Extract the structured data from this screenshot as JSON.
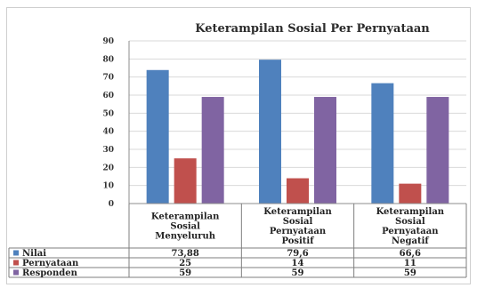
{
  "chart_data": {
    "type": "bar",
    "title": "Keterampilan Sosial Per Pernyataan",
    "categories": [
      [
        "Keterampilan",
        "Sosial",
        "Menyeluruh"
      ],
      [
        "Keterampilan",
        "Sosial",
        "Pernyataan",
        "Positif"
      ],
      [
        "Keterampilan",
        "Sosial",
        "Pernyataan",
        "Negatif"
      ]
    ],
    "series": [
      {
        "name": "Nilai",
        "color": "#4f81bd",
        "values": [
          73.88,
          79.6,
          66.6
        ],
        "labels": [
          "73,88",
          "79,6",
          "66,6"
        ]
      },
      {
        "name": "Pernyataan",
        "color": "#c0504d",
        "values": [
          25,
          14,
          11
        ],
        "labels": [
          "25",
          "14",
          "11"
        ]
      },
      {
        "name": "Responden",
        "color": "#8064a2",
        "values": [
          59,
          59,
          59
        ],
        "labels": [
          "59",
          "59",
          "59"
        ]
      }
    ],
    "ylim": [
      0,
      90
    ],
    "yticks": [
      0,
      10,
      20,
      30,
      40,
      50,
      60,
      70,
      80,
      90
    ],
    "grid": true,
    "legend": "data table"
  }
}
